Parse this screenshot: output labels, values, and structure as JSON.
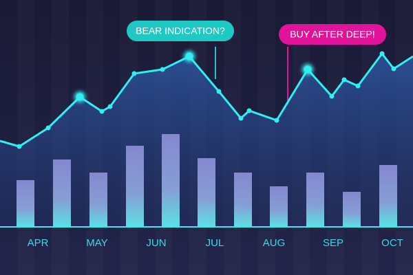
{
  "chart_data": {
    "type": "bar-line",
    "xlim": [
      0,
      600
    ],
    "ylim": [
      0,
      330
    ],
    "xticks": [
      {
        "value": 55,
        "label": "APR"
      },
      {
        "value": 141,
        "label": "MAY"
      },
      {
        "value": 227,
        "label": "JUN"
      },
      {
        "value": 312,
        "label": "JUL"
      },
      {
        "value": 398,
        "label": "AUG"
      },
      {
        "value": 484,
        "label": "SEP"
      },
      {
        "value": 570,
        "label": "OCT"
      }
    ],
    "bars": {
      "color": "#8a8fd6",
      "x": [
        37,
        90,
        143,
        196,
        248,
        300,
        353,
        405,
        458,
        511,
        564
      ],
      "values": [
        68,
        98,
        79,
        118,
        135,
        100,
        79,
        59,
        79,
        51,
        90
      ]
    },
    "line": {
      "color": "#33eef0",
      "x": [
        0,
        28,
        70,
        116,
        148,
        160,
        195,
        236,
        275,
        318,
        350,
        362,
        402,
        447,
        482,
        500,
        520,
        555,
        572,
        600
      ],
      "values": [
        125,
        117,
        144,
        189,
        168,
        175,
        223,
        229,
        248,
        197,
        158,
        169,
        155,
        229,
        190,
        214,
        205,
        252,
        230,
        248
      ],
      "highlight_points": [
        3,
        8,
        13
      ]
    },
    "annotations": [
      {
        "text": "BEAR INDICATION?",
        "color": "#1ec8c4"
      },
      {
        "text": "BUY AFTER DEEP!",
        "color": "#e0139a"
      }
    ]
  }
}
